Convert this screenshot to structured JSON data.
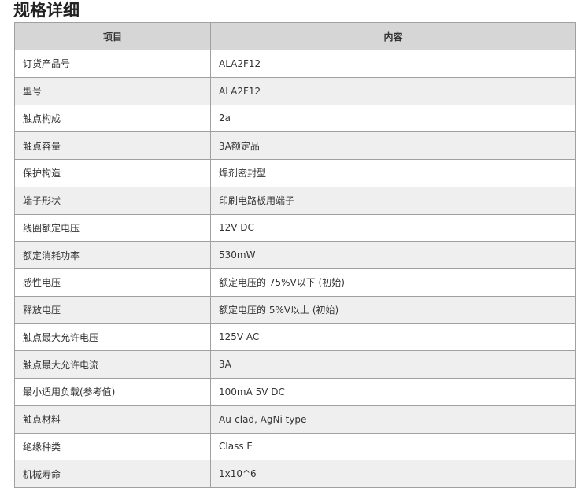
{
  "title": "规格详细",
  "table": {
    "headers": [
      "项目",
      "内容"
    ],
    "rows": [
      [
        "订货产品号",
        "ALA2F12"
      ],
      [
        "型号",
        "ALA2F12"
      ],
      [
        "触点构成",
        "2a"
      ],
      [
        "触点容量",
        "3A额定品"
      ],
      [
        "保护构造",
        "焊剂密封型"
      ],
      [
        "端子形状",
        "印刷电路板用端子"
      ],
      [
        "线圈额定电压",
        "12V DC"
      ],
      [
        "额定消耗功率",
        "530mW"
      ],
      [
        "感性电压",
        "额定电压的 75%V以下 (初始)"
      ],
      [
        "释放电压",
        "额定电压的 5%V以上 (初始)"
      ],
      [
        "触点最大允许电压",
        "125V AC"
      ],
      [
        "触点最大允许电流",
        "3A"
      ],
      [
        "最小适用负载(参考值)",
        "100mA 5V DC"
      ],
      [
        "触点材料",
        "Au-clad, AgNi type"
      ],
      [
        "绝缘种类",
        "Class E"
      ],
      [
        "机械寿命",
        "1x10^6"
      ]
    ]
  }
}
